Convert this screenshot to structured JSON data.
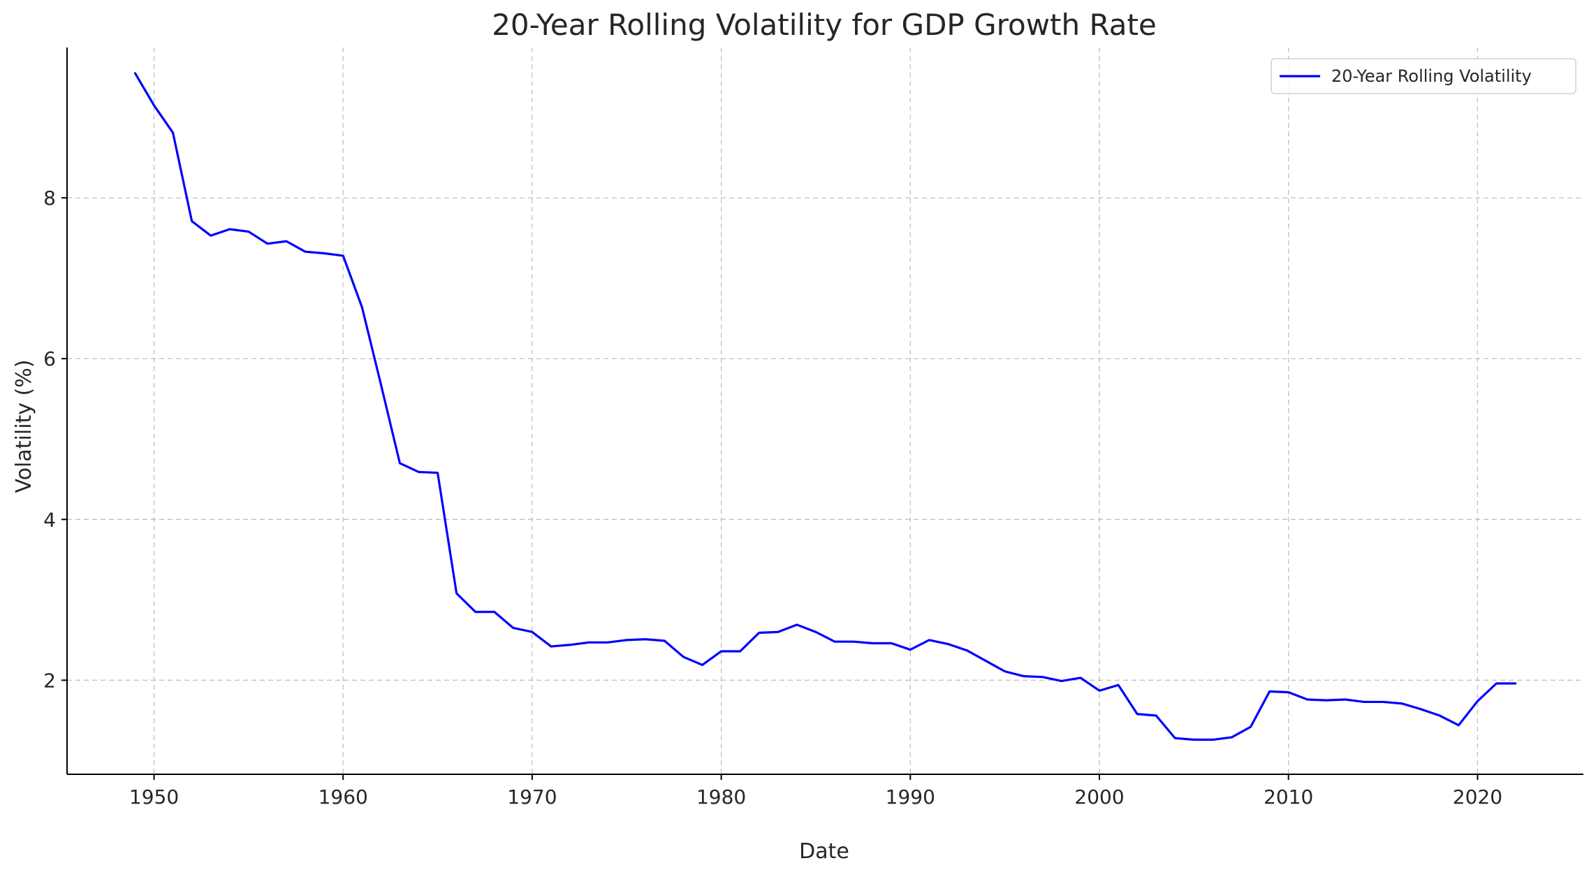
{
  "chart_data": {
    "type": "line",
    "title": "20-Year Rolling Volatility for GDP Growth Rate",
    "xlabel": "Date",
    "ylabel": "Volatility (%)",
    "xlim": [
      1945.4,
      2025.6
    ],
    "ylim": [
      0.83,
      9.87
    ],
    "x_ticks": [
      1950,
      1960,
      1970,
      1980,
      1990,
      2000,
      2010,
      2020
    ],
    "y_ticks": [
      2,
      4,
      6,
      8
    ],
    "grid": true,
    "legend_position": "top-right",
    "series": [
      {
        "name": "20-Year Rolling Volatility",
        "color": "#0000ff",
        "x": [
          1949,
          1950,
          1951,
          1952,
          1953,
          1954,
          1955,
          1956,
          1957,
          1958,
          1959,
          1960,
          1961,
          1962,
          1963,
          1964,
          1965,
          1966,
          1967,
          1968,
          1969,
          1970,
          1971,
          1972,
          1973,
          1974,
          1975,
          1976,
          1977,
          1978,
          1979,
          1980,
          1981,
          1982,
          1983,
          1984,
          1985,
          1986,
          1987,
          1988,
          1989,
          1990,
          1991,
          1992,
          1993,
          1994,
          1995,
          1996,
          1997,
          1998,
          1999,
          2000,
          2001,
          2002,
          2003,
          2004,
          2005,
          2006,
          2007,
          2008,
          2009,
          2010,
          2011,
          2012,
          2013,
          2014,
          2015,
          2016,
          2017,
          2018,
          2019,
          2020,
          2021,
          2022
        ],
        "values": [
          9.55,
          9.15,
          8.81,
          7.71,
          7.53,
          7.61,
          7.58,
          7.43,
          7.46,
          7.33,
          7.31,
          7.28,
          6.64,
          5.68,
          4.7,
          4.59,
          4.58,
          3.08,
          2.85,
          2.85,
          2.65,
          2.6,
          2.42,
          2.44,
          2.47,
          2.47,
          2.5,
          2.51,
          2.49,
          2.29,
          2.19,
          2.36,
          2.36,
          2.59,
          2.6,
          2.69,
          2.6,
          2.48,
          2.48,
          2.46,
          2.46,
          2.38,
          2.5,
          2.45,
          2.37,
          2.24,
          2.11,
          2.05,
          2.04,
          1.99,
          2.03,
          1.87,
          1.94,
          1.58,
          1.56,
          1.28,
          1.26,
          1.26,
          1.29,
          1.42,
          1.86,
          1.85,
          1.76,
          1.75,
          1.76,
          1.73,
          1.73,
          1.71,
          1.64,
          1.56,
          1.44,
          1.74,
          1.96,
          1.96
        ]
      }
    ]
  }
}
